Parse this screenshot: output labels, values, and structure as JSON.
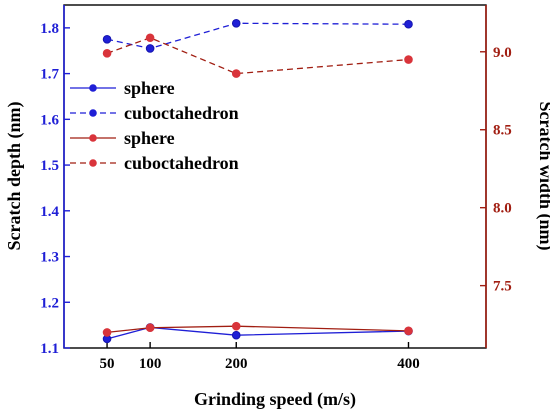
{
  "chart_data": {
    "type": "line",
    "xlabel": "Grinding speed (m/s)",
    "ylabel_left": "Scratch depth (nm)",
    "ylabel_right": "Scratch width (nm)",
    "x_ticks": [
      50,
      100,
      200,
      400
    ],
    "x_categories": [
      "50",
      "100",
      "200",
      "400"
    ],
    "xlim": [
      0,
      490
    ],
    "ylim_left": [
      1.1,
      1.85
    ],
    "ylim_right": [
      7.1,
      9.3
    ],
    "y_ticks_left": [
      "1.1",
      "1.2",
      "1.3",
      "1.4",
      "1.5",
      "1.6",
      "1.7",
      "1.8"
    ],
    "y_ticks_right": [
      "7.5",
      "8.0",
      "8.5",
      "9.0"
    ],
    "x": [
      50,
      100,
      200,
      400
    ],
    "grid": false,
    "legend_position": "upper-left",
    "colors": {
      "left_axis": "#1f1fd6",
      "right_axis": "#a11e12",
      "blue_series": "#1f1fd6",
      "red_series": "#a11e12",
      "red_marker": "#d9343b"
    },
    "series": [
      {
        "name": "sphere",
        "axis": "left",
        "style": "solid",
        "color": "#1f1fd6",
        "values": [
          1.12,
          1.145,
          1.128,
          1.137
        ]
      },
      {
        "name": "cuboctahedron",
        "axis": "left",
        "style": "dashed",
        "color": "#1f1fd6",
        "values": [
          1.775,
          1.755,
          1.81,
          1.808
        ]
      },
      {
        "name": "sphere",
        "axis": "right",
        "style": "solid",
        "color": "#a11e12",
        "values": [
          7.2,
          7.23,
          7.24,
          7.21
        ]
      },
      {
        "name": "cuboctahedron",
        "axis": "right",
        "style": "dashed",
        "color": "#a11e12",
        "values": [
          8.99,
          9.09,
          8.86,
          8.95
        ]
      }
    ]
  }
}
